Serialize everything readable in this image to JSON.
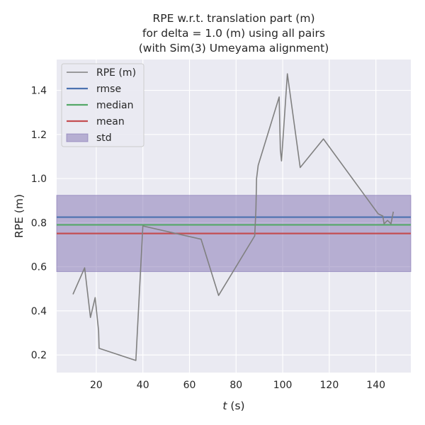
{
  "chart_data": {
    "type": "line",
    "title_lines": [
      "RPE w.r.t. translation part (m)",
      "for delta = 1.0 (m) using all pairs",
      "(with Sim(3) Umeyama alignment)"
    ],
    "xlabel_italic": "t",
    "xlabel_rest": " (s)",
    "ylabel": "RPE (m)",
    "xlim": [
      3,
      155
    ],
    "ylim": [
      0.12,
      1.54
    ],
    "xticks": [
      20,
      40,
      60,
      80,
      100,
      120,
      140
    ],
    "xtick_labels": [
      "20",
      "40",
      "60",
      "80",
      "100",
      "120",
      "140"
    ],
    "yticks": [
      0.2,
      0.4,
      0.6,
      0.8,
      1.0,
      1.2,
      1.4
    ],
    "ytick_labels": [
      "0.2",
      "0.4",
      "0.6",
      "0.8",
      "1.0",
      "1.2",
      "1.4"
    ],
    "grid": true,
    "legend_position": "upper-left",
    "series": [
      {
        "name": "RPE (m)",
        "color": "#808080",
        "x": [
          10,
          15,
          17.5,
          19.5,
          21,
          21.2,
          37,
          40,
          65,
          72.5,
          88,
          88.5,
          88.8,
          89.5,
          98.5,
          99,
          99.5,
          102,
          107.5,
          117.5,
          141,
          143,
          143.5,
          145,
          146.5,
          147.5
        ],
        "y": [
          0.475,
          0.595,
          0.37,
          0.46,
          0.31,
          0.23,
          0.175,
          0.785,
          0.725,
          0.47,
          0.74,
          0.86,
          1.0,
          1.06,
          1.37,
          1.13,
          1.08,
          1.475,
          1.05,
          1.18,
          0.84,
          0.83,
          0.795,
          0.81,
          0.795,
          0.85
        ]
      }
    ],
    "stats": {
      "rmse": {
        "name": "rmse",
        "value": 0.825,
        "color": "#4c72b0"
      },
      "median": {
        "name": "median",
        "value": 0.79,
        "color": "#55a868"
      },
      "mean": {
        "name": "mean",
        "value": 0.751,
        "color": "#c44e52"
      },
      "std": {
        "name": "std",
        "low": 0.578,
        "high": 0.924,
        "color": "#8172b2"
      }
    },
    "legend": [
      "RPE (m)",
      "rmse",
      "median",
      "mean",
      "std"
    ]
  }
}
